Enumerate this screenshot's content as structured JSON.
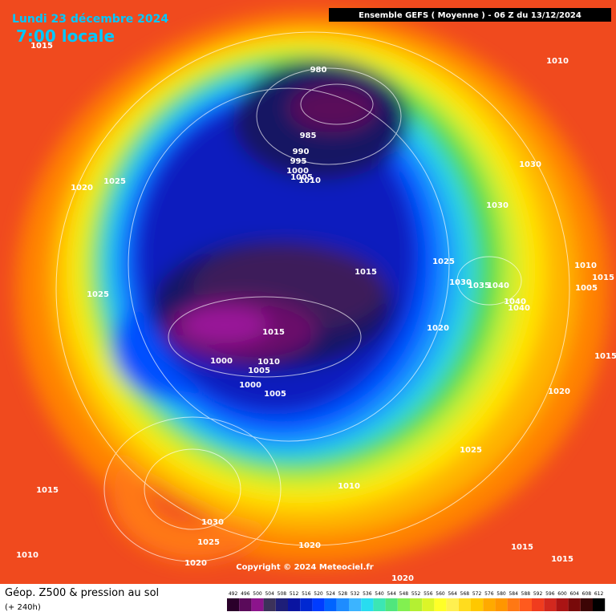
{
  "header": {
    "date": "Lundi 23 décembre 2024",
    "time": "7:00 locale",
    "model": "Ensemble GEFS  ( Moyenne )  -  06 Z du 13/12/2024"
  },
  "map": {
    "isobar_labels": [
      "1015",
      "980",
      "1010",
      "985",
      "990",
      "995",
      "1000",
      "1005",
      "1010",
      "1030",
      "1020",
      "1025",
      "1030",
      "1025",
      "1015",
      "1010",
      "1015",
      "1030",
      "1035",
      "1040",
      "1005",
      "1025",
      "1040",
      "1040",
      "1015",
      "1020",
      "1000",
      "1010",
      "1005",
      "1015",
      "1000",
      "1005",
      "1020",
      "1025",
      "1015",
      "1010",
      "1030",
      "1025",
      "1020",
      "1015",
      "1010",
      "1020",
      "1015",
      "1020"
    ],
    "copyright": "Copyright © 2024 Meteociel.fr"
  },
  "footer": {
    "title": "Géop. Z500 & pression au sol",
    "lead": "(+ 240h)",
    "scale": {
      "ticks": [
        492,
        496,
        500,
        504,
        508,
        512,
        516,
        520,
        524,
        528,
        532,
        536,
        540,
        544,
        548,
        552,
        556,
        560,
        564,
        568,
        572,
        576,
        580,
        584,
        588,
        592,
        596,
        600,
        604,
        608,
        612
      ],
      "colors": [
        "#2a002a",
        "#5a0a5a",
        "#8c148c",
        "#3c325a",
        "#1e1e78",
        "#0a14a0",
        "#0028d2",
        "#003cff",
        "#0064ff",
        "#1e8cff",
        "#3cb4ff",
        "#28dcf0",
        "#3ce6b4",
        "#50e67d",
        "#82f050",
        "#b4f032",
        "#dcf528",
        "#ffff28",
        "#fff050",
        "#ffdc1e",
        "#ffc800",
        "#ffaa00",
        "#ff9600",
        "#ff7814",
        "#ff5a1e",
        "#f03c1e",
        "#d2281e",
        "#aa1414",
        "#780a0a",
        "#3c0505",
        "#000000"
      ]
    }
  }
}
